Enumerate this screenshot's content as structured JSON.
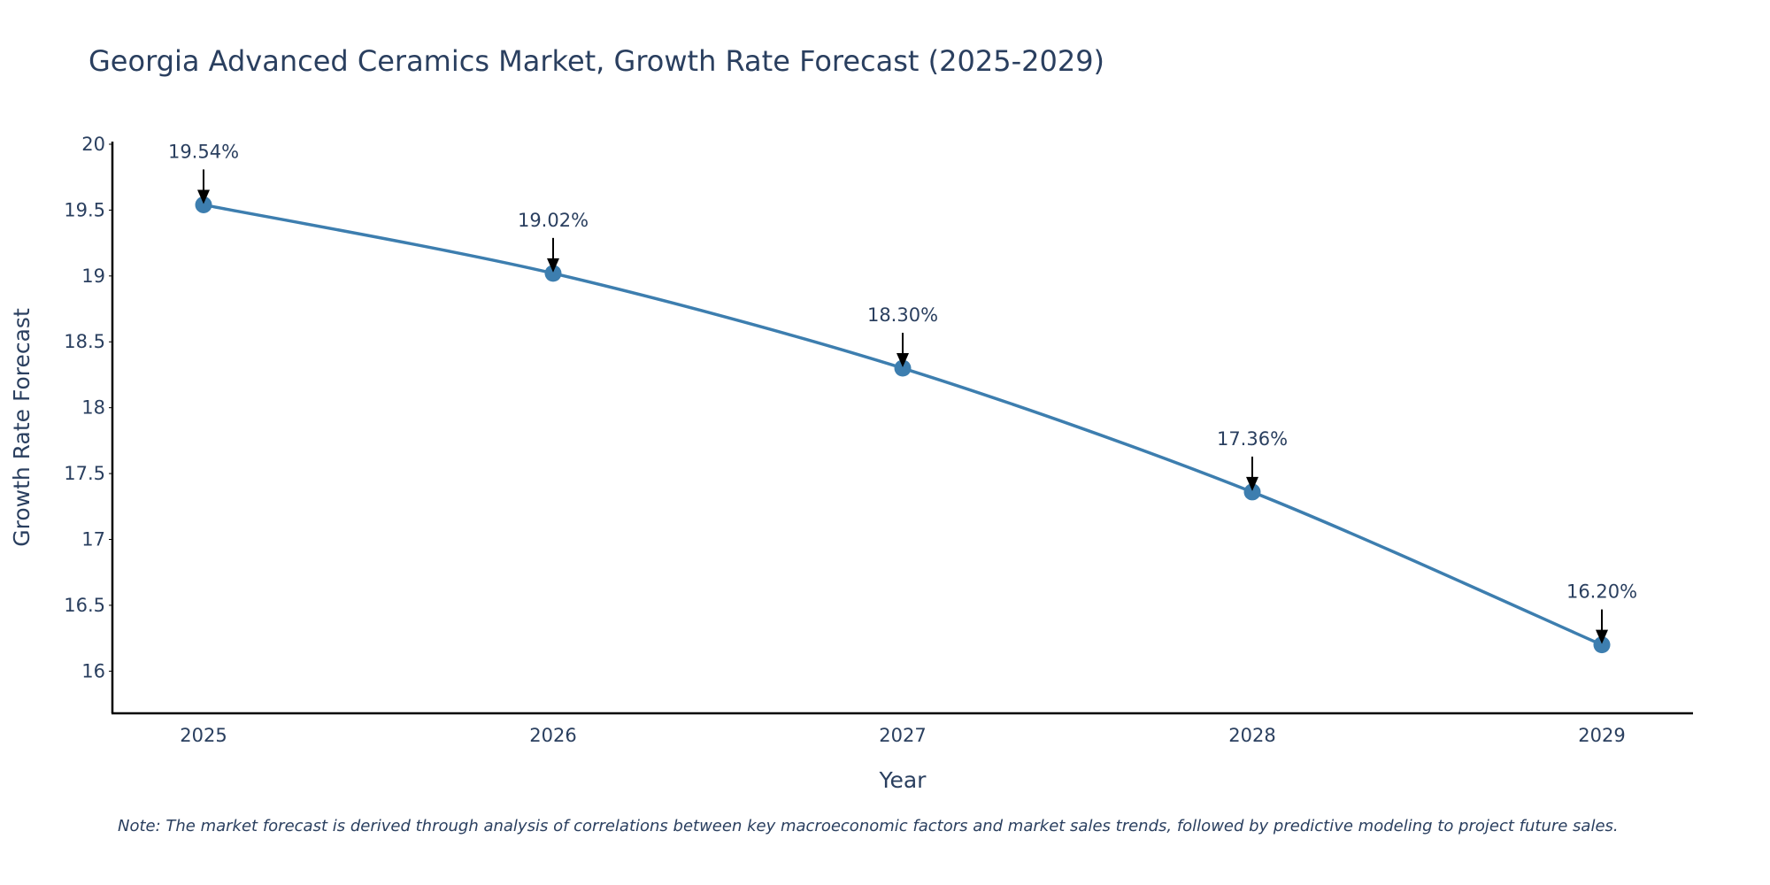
{
  "colors": {
    "line": "#3d7eaf",
    "marker": "#3d7eaf",
    "text": "#2a3f5f",
    "axis": "#000000",
    "arrow": "#000000"
  },
  "chart_data": {
    "type": "line",
    "title": "Georgia Advanced Ceramics Market, Growth Rate Forecast (2025-2029)",
    "xlabel": "Year",
    "ylabel": "Growth Rate Forecast",
    "categories": [
      "2025",
      "2026",
      "2027",
      "2028",
      "2029"
    ],
    "series": [
      {
        "name": "Growth Rate Forecast",
        "values": [
          19.54,
          19.02,
          18.3,
          17.36,
          16.2
        ]
      }
    ],
    "data_labels": [
      "19.54%",
      "19.02%",
      "18.30%",
      "17.36%",
      "16.20%"
    ],
    "ylim": [
      15.68,
      20.02
    ],
    "yticks": [
      16,
      16.5,
      17,
      17.5,
      18,
      18.5,
      19,
      19.5,
      20
    ],
    "ytick_labels": [
      "16",
      "16.5",
      "17",
      "17.5",
      "18",
      "18.5",
      "19",
      "19.5",
      "20"
    ],
    "grid": false,
    "legend": "none",
    "note": "Note: The market forecast is derived through analysis of correlations between key macroeconomic factors and market sales trends, followed by predictive modeling to project future sales."
  }
}
